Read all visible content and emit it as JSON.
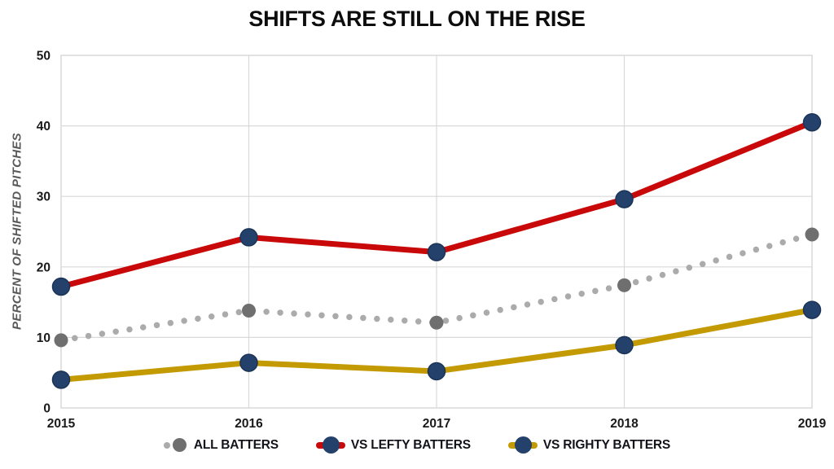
{
  "chart_data": {
    "type": "line",
    "title": "SHIFTS ARE STILL ON THE RISE",
    "xlabel": "",
    "ylabel": "PERCENT OF SHIFTED PITCHES",
    "categories": [
      "2015",
      "2016",
      "2017",
      "2018",
      "2019"
    ],
    "series": [
      {
        "name": "ALL BATTERS",
        "values": [
          9.6,
          13.8,
          12.1,
          17.4,
          24.6
        ],
        "style": "dotted",
        "line_color": "#ABABAB",
        "marker_color": "#6F6F6F"
      },
      {
        "name": "VS LEFTY BATTERS",
        "values": [
          17.2,
          24.2,
          22.1,
          29.6,
          40.5
        ],
        "style": "solid",
        "line_color": "#C90909",
        "marker_color": "#24416B",
        "marker_stroke": "#1B3456"
      },
      {
        "name": "VS RIGHTY BATTERS",
        "values": [
          4.0,
          6.4,
          5.2,
          8.9,
          13.9
        ],
        "style": "solid",
        "line_color": "#C49A02",
        "marker_color": "#24416B",
        "marker_stroke": "#1B3456"
      }
    ],
    "ylim": [
      0,
      50
    ],
    "yticks": [
      0,
      10,
      20,
      30,
      40,
      50
    ],
    "grid": true,
    "legend_position": "bottom"
  },
  "colors": {
    "background": "#FFFFFF",
    "grid": "#D9D9D9",
    "plot_border": "#D9D9D9",
    "axis_tick_text": "#1A1A1A",
    "axis_title_text": "#595959",
    "title_text": "#0D0D0D",
    "legend_text": "#13131C"
  }
}
